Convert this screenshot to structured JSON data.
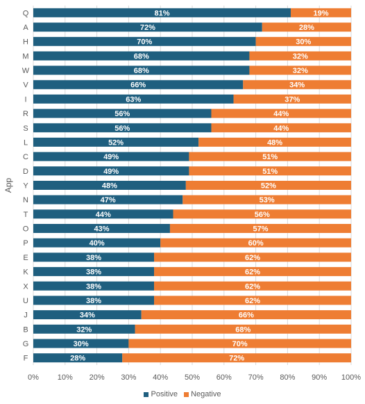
{
  "chart_data": {
    "type": "bar",
    "orientation": "horizontal",
    "stacked": true,
    "ylabel": "App",
    "categories": [
      "Q",
      "A",
      "H",
      "M",
      "W",
      "V",
      "I",
      "R",
      "S",
      "L",
      "C",
      "D",
      "Y",
      "N",
      "T",
      "O",
      "P",
      "E",
      "K",
      "X",
      "U",
      "J",
      "B",
      "G",
      "F"
    ],
    "series": [
      {
        "name": "Positive",
        "color": "#1f5f7f",
        "values": [
          81,
          72,
          70,
          68,
          68,
          66,
          63,
          56,
          56,
          52,
          49,
          49,
          48,
          47,
          44,
          43,
          40,
          38,
          38,
          38,
          38,
          34,
          32,
          30,
          28
        ]
      },
      {
        "name": "Negative",
        "color": "#ee7d33",
        "values": [
          19,
          28,
          30,
          32,
          32,
          34,
          37,
          44,
          44,
          48,
          51,
          51,
          52,
          53,
          56,
          57,
          60,
          62,
          62,
          62,
          62,
          66,
          68,
          70,
          72
        ]
      }
    ],
    "xlim": [
      0,
      100
    ],
    "xticks": [
      "0%",
      "10%",
      "20%",
      "30%",
      "40%",
      "50%",
      "60%",
      "70%",
      "80%",
      "90%",
      "100%"
    ],
    "value_suffix": "%",
    "gridlines": true,
    "legend_position": "bottom"
  }
}
